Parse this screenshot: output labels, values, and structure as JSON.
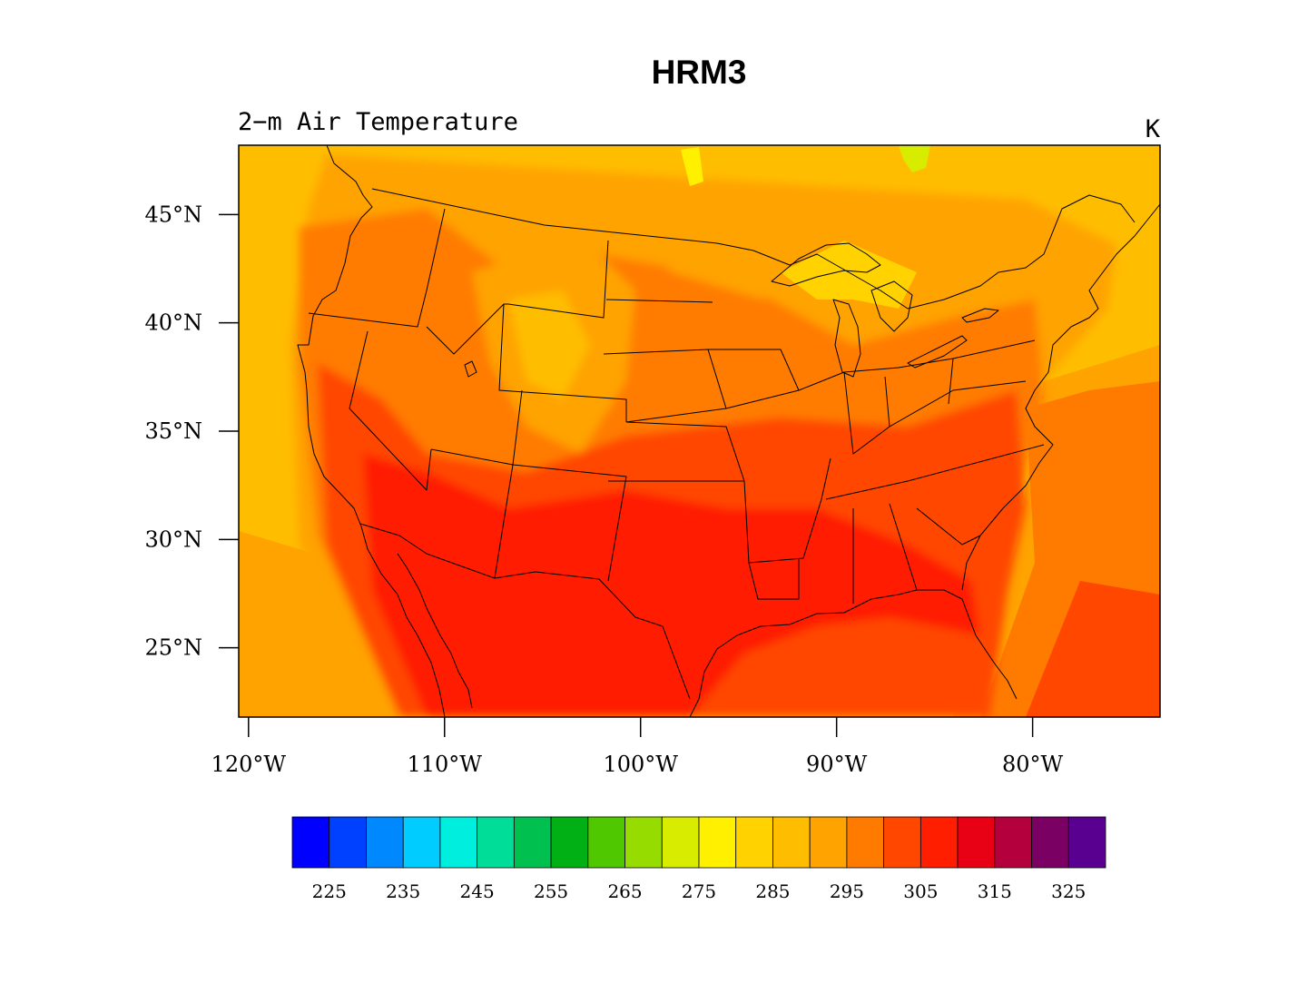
{
  "figure": {
    "title": "HRM3",
    "left_string": "2−m Air Temperature",
    "right_string": "K"
  },
  "map": {
    "region": "contiguous-united-states",
    "lon_range": [
      -120.5,
      -73.5
    ],
    "lat_range": [
      21.8,
      48.2
    ],
    "lat_ticks": [
      {
        "value": 25,
        "label": "25°N"
      },
      {
        "value": 30,
        "label": "30°N"
      },
      {
        "value": 35,
        "label": "35°N"
      },
      {
        "value": 40,
        "label": "40°N"
      },
      {
        "value": 45,
        "label": "45°N"
      }
    ],
    "lon_ticks": [
      {
        "value": -120,
        "label": "120°W"
      },
      {
        "value": -110,
        "label": "110°W"
      },
      {
        "value": -100,
        "label": "100°W"
      },
      {
        "value": -90,
        "label": "90°W"
      },
      {
        "value": -80,
        "label": "80°W"
      }
    ]
  },
  "colorbar": {
    "colors": [
      "#0000ff",
      "#0040ff",
      "#0088ff",
      "#00ccff",
      "#00eedd",
      "#00dd99",
      "#00c050",
      "#00b014",
      "#50c800",
      "#96dc00",
      "#d8ec00",
      "#fff000",
      "#ffd200",
      "#ffbd00",
      "#ffa300",
      "#ff7b00",
      "#ff4700",
      "#ff1e00",
      "#e80014",
      "#b4003c",
      "#7a0064",
      "#5a0090"
    ],
    "labels": [
      "225",
      "235",
      "245",
      "255",
      "265",
      "275",
      "285",
      "295",
      "305",
      "315",
      "325"
    ]
  },
  "chart_data": {
    "type": "heatmap",
    "variable": "2−m Air Temperature",
    "units": "K",
    "levels": [
      220,
      225,
      230,
      235,
      240,
      245,
      250,
      255,
      260,
      265,
      270,
      275,
      280,
      285,
      290,
      295,
      300,
      305,
      310,
      315,
      320,
      325,
      330
    ],
    "xlim": [
      -120.5,
      -73.5
    ],
    "ylim": [
      21.8,
      48.2
    ]
  }
}
